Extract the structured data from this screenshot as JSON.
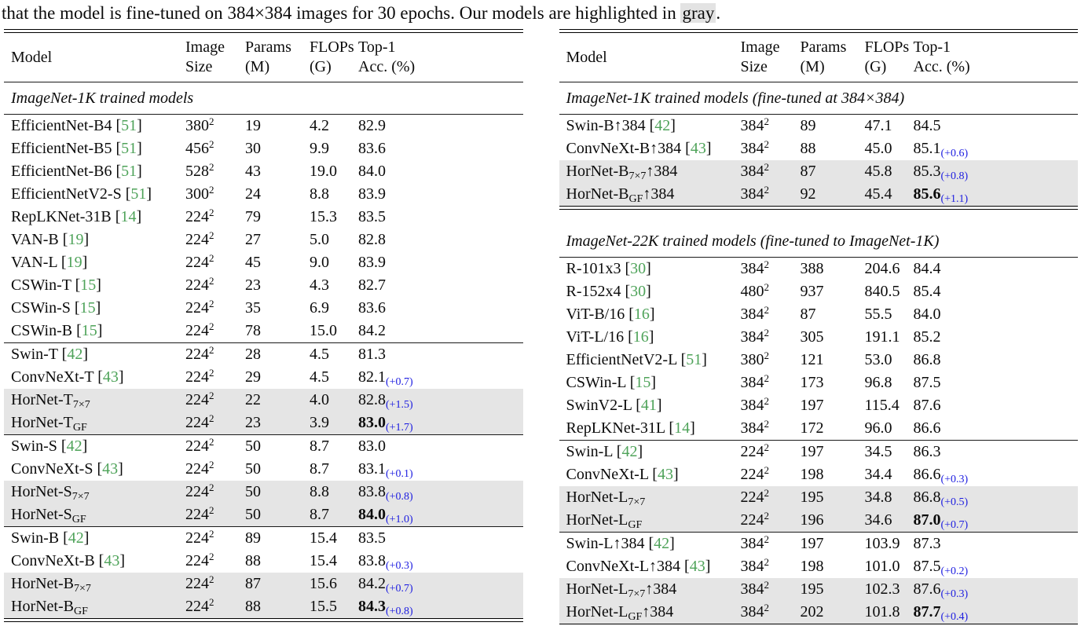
{
  "caption": {
    "prefix": "that the model is fine-tuned on ",
    "dims": "384×384",
    "middle": " images for 30 epochs. Our models are highlighted in ",
    "highlight": "gray",
    "period": "."
  },
  "colors": {
    "citation_green": "#4fa35a",
    "delta_blue": "#1c1ce0",
    "row_highlight_gray": "#e5e5e5",
    "caption_highlight_gray": "#e3e3e3"
  },
  "header": {
    "model": "Model",
    "cols": [
      {
        "line1": "Image",
        "line2": "Size"
      },
      {
        "line1": "Params",
        "line2": "(M)"
      },
      {
        "line1": "FLOPs",
        "line2": "(G)"
      },
      {
        "line1": "Top-1",
        "line2": "Acc. (%)"
      }
    ],
    "size_exponent": "2",
    "cite_open": " [",
    "cite_close": "]"
  },
  "left_table": {
    "sections": [
      {
        "title": "ImageNet-1K trained models",
        "groups": [
          [
            {
              "model": "EfficientNet-B4",
              "cite": "51",
              "size": "380",
              "params": "19",
              "flops": "4.2",
              "acc": "82.9"
            },
            {
              "model": "EfficientNet-B5",
              "cite": "51",
              "size": "456",
              "params": "30",
              "flops": "9.9",
              "acc": "83.6"
            },
            {
              "model": "EfficientNet-B6",
              "cite": "51",
              "size": "528",
              "params": "43",
              "flops": "19.0",
              "acc": "84.0"
            },
            {
              "model": "EfficientNetV2-S",
              "cite": "51",
              "size": "300",
              "params": "24",
              "flops": "8.8",
              "acc": "83.9"
            },
            {
              "model": "RepLKNet-31B",
              "cite": "14",
              "size": "224",
              "params": "79",
              "flops": "15.3",
              "acc": "83.5"
            },
            {
              "model": "VAN-B",
              "cite": "19",
              "size": "224",
              "params": "27",
              "flops": "5.0",
              "acc": "82.8"
            },
            {
              "model": "VAN-L",
              "cite": "19",
              "size": "224",
              "params": "45",
              "flops": "9.0",
              "acc": "83.9"
            },
            {
              "model": "CSWin-T",
              "cite": "15",
              "size": "224",
              "params": "23",
              "flops": "4.3",
              "acc": "82.7"
            },
            {
              "model": "CSWin-S",
              "cite": "15",
              "size": "224",
              "params": "35",
              "flops": "6.9",
              "acc": "83.6"
            },
            {
              "model": "CSWin-B",
              "cite": "15",
              "size": "224",
              "params": "78",
              "flops": "15.0",
              "acc": "84.2"
            }
          ],
          [
            {
              "model": "Swin-T",
              "cite": "42",
              "size": "224",
              "params": "28",
              "flops": "4.5",
              "acc": "81.3"
            },
            {
              "model": "ConvNeXt-T",
              "cite": "43",
              "size": "224",
              "params": "29",
              "flops": "4.5",
              "acc": "82.1",
              "delta": "(+0.7)"
            },
            {
              "model": "HorNet-T",
              "sub": "7×7",
              "size": "224",
              "params": "22",
              "flops": "4.0",
              "acc": "82.8",
              "delta": "(+1.5)",
              "gray": true
            },
            {
              "model": "HorNet-T",
              "sub": "GF",
              "size": "224",
              "params": "23",
              "flops": "3.9",
              "acc": "83.0",
              "delta": "(+1.7)",
              "bold": true,
              "gray": true
            }
          ],
          [
            {
              "model": "Swin-S",
              "cite": "42",
              "size": "224",
              "params": "50",
              "flops": "8.7",
              "acc": "83.0"
            },
            {
              "model": "ConvNeXt-S",
              "cite": "43",
              "size": "224",
              "params": "50",
              "flops": "8.7",
              "acc": "83.1",
              "delta": "(+0.1)"
            },
            {
              "model": "HorNet-S",
              "sub": "7×7",
              "size": "224",
              "params": "50",
              "flops": "8.8",
              "acc": "83.8",
              "delta": "(+0.8)",
              "gray": true
            },
            {
              "model": "HorNet-S",
              "sub": "GF",
              "size": "224",
              "params": "50",
              "flops": "8.7",
              "acc": "84.0",
              "delta": "(+1.0)",
              "bold": true,
              "gray": true
            }
          ],
          [
            {
              "model": "Swin-B",
              "cite": "42",
              "size": "224",
              "params": "89",
              "flops": "15.4",
              "acc": "83.5"
            },
            {
              "model": "ConvNeXt-B",
              "cite": "43",
              "size": "224",
              "params": "88",
              "flops": "15.4",
              "acc": "83.8",
              "delta": "(+0.3)"
            },
            {
              "model": "HorNet-B",
              "sub": "7×7",
              "size": "224",
              "params": "87",
              "flops": "15.6",
              "acc": "84.2",
              "delta": "(+0.7)",
              "gray": true
            },
            {
              "model": "HorNet-B",
              "sub": "GF",
              "size": "224",
              "params": "88",
              "flops": "15.5",
              "acc": "84.3",
              "delta": "(+0.8)",
              "bold": true,
              "gray": true
            }
          ]
        ]
      }
    ]
  },
  "right_table": {
    "sections": [
      {
        "title": "ImageNet-1K trained models (fine-tuned at 384×384)",
        "groups": [
          [
            {
              "model": "Swin-B",
              "suffix": "↑384",
              "cite": "42",
              "size": "384",
              "params": "89",
              "flops": "47.1",
              "acc": "84.5"
            },
            {
              "model": "ConvNeXt-B",
              "suffix": "↑384",
              "cite": "43",
              "size": "384",
              "params": "88",
              "flops": "45.0",
              "acc": "85.1",
              "delta": "(+0.6)"
            },
            {
              "model": "HorNet-B",
              "sub": "7×7",
              "suffix": "↑384",
              "size": "384",
              "params": "87",
              "flops": "45.8",
              "acc": "85.3",
              "delta": "(+0.8)",
              "gray": true
            },
            {
              "model": "HorNet-B",
              "sub": "GF",
              "suffix": "↑384",
              "size": "384",
              "params": "92",
              "flops": "45.4",
              "acc": "85.6",
              "delta": "(+1.1)",
              "bold": true,
              "gray": true
            }
          ]
        ]
      },
      {
        "title": "ImageNet-22K trained models (fine-tuned to ImageNet-1K)",
        "groups": [
          [
            {
              "model": "R-101x3",
              "cite": "30",
              "size": "384",
              "params": "388",
              "flops": "204.6",
              "acc": "84.4"
            },
            {
              "model": "R-152x4",
              "cite": "30",
              "size": "480",
              "params": "937",
              "flops": "840.5",
              "acc": "85.4"
            },
            {
              "model": "ViT-B/16",
              "cite": "16",
              "size": "384",
              "params": "87",
              "flops": "55.5",
              "acc": "84.0"
            },
            {
              "model": "ViT-L/16",
              "cite": "16",
              "size": "384",
              "params": "305",
              "flops": "191.1",
              "acc": "85.2"
            },
            {
              "model": "EfficientNetV2-L",
              "cite": "51",
              "size": "380",
              "params": "121",
              "flops": "53.0",
              "acc": "86.8"
            },
            {
              "model": "CSWin-L",
              "cite": "15",
              "size": "384",
              "params": "173",
              "flops": "96.8",
              "acc": "87.5"
            },
            {
              "model": "SwinV2-L",
              "cite": "41",
              "size": "384",
              "params": "197",
              "flops": "115.4",
              "acc": "87.6"
            },
            {
              "model": "RepLKNet-31L",
              "cite": "14",
              "size": "384",
              "params": "172",
              "flops": "96.0",
              "acc": "86.6"
            }
          ],
          [
            {
              "model": "Swin-L",
              "cite": "42",
              "size": "224",
              "params": "197",
              "flops": "34.5",
              "acc": "86.3"
            },
            {
              "model": "ConvNeXt-L",
              "cite": "43",
              "size": "224",
              "params": "198",
              "flops": "34.4",
              "acc": "86.6",
              "delta": "(+0.3)"
            },
            {
              "model": "HorNet-L",
              "sub": "7×7",
              "size": "224",
              "params": "195",
              "flops": "34.8",
              "acc": "86.8",
              "delta": "(+0.5)",
              "gray": true
            },
            {
              "model": "HorNet-L",
              "sub": "GF",
              "size": "224",
              "params": "196",
              "flops": "34.6",
              "acc": "87.0",
              "delta": "(+0.7)",
              "bold": true,
              "gray": true
            }
          ],
          [
            {
              "model": "Swin-L",
              "suffix": "↑384",
              "cite": "42",
              "size": "384",
              "params": "197",
              "flops": "103.9",
              "acc": "87.3"
            },
            {
              "model": "ConvNeXt-L",
              "suffix": "↑384",
              "cite": "43",
              "size": "384",
              "params": "198",
              "flops": "101.0",
              "acc": "87.5",
              "delta": "(+0.2)"
            },
            {
              "model": "HorNet-L",
              "sub": "7×7",
              "suffix": "↑384",
              "size": "384",
              "params": "195",
              "flops": "102.3",
              "acc": "87.6",
              "delta": "(+0.3)",
              "gray": true
            },
            {
              "model": "HorNet-L",
              "sub": "GF",
              "suffix": "↑384",
              "size": "384",
              "params": "202",
              "flops": "101.8",
              "acc": "87.7",
              "delta": "(+0.4)",
              "bold": true,
              "gray": true
            }
          ]
        ]
      }
    ]
  }
}
